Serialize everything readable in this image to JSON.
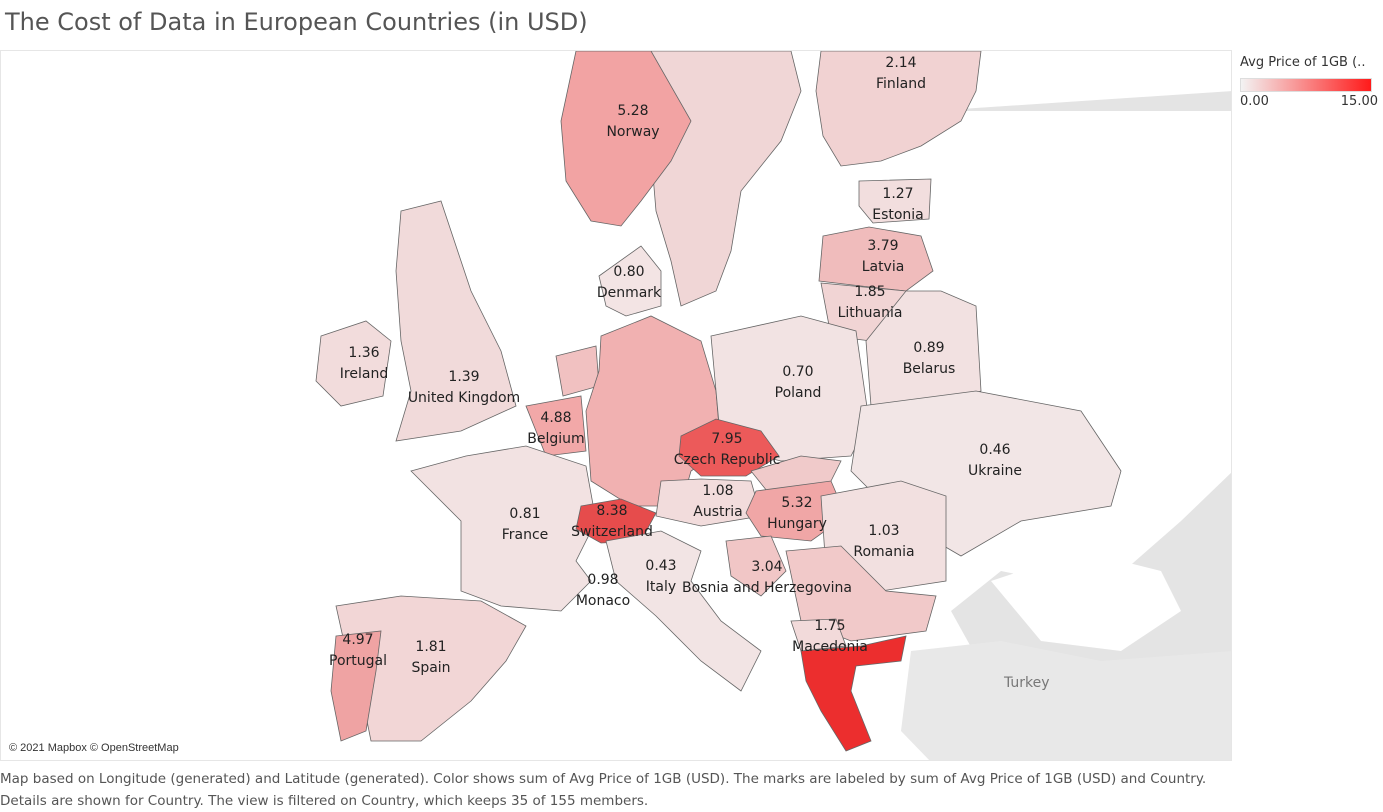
{
  "title": "The Cost of Data in European Countries (in USD)",
  "legend": {
    "title": "Avg Price of 1GB (..",
    "min_label": "0.00",
    "max_label": "15.00",
    "min_color": "#f3f3f3",
    "max_color": "#ff1a1a"
  },
  "attribution": "© 2021 Mapbox © OpenStreetMap",
  "background_label": "Turkey",
  "caption": "Map based on Longitude (generated) and Latitude (generated).  Color shows sum of Avg Price of 1GB (USD).  The marks are labeled by sum of Avg Price of 1GB (USD) and Country.  Details are shown for Country. The view is filtered on Country, which keeps 35 of 155 members.",
  "countries": [
    {
      "name": "Finland",
      "value": "2.14"
    },
    {
      "name": "Norway",
      "value": "5.28"
    },
    {
      "name": "Estonia",
      "value": "1.27"
    },
    {
      "name": "Latvia",
      "value": "3.79"
    },
    {
      "name": "Denmark",
      "value": "0.80"
    },
    {
      "name": "Lithuania",
      "value": "1.85"
    },
    {
      "name": "Ireland",
      "value": "1.36"
    },
    {
      "name": "United Kingdom",
      "value": "1.39"
    },
    {
      "name": "Belarus",
      "value": "0.89"
    },
    {
      "name": "Poland",
      "value": "0.70"
    },
    {
      "name": "Belgium",
      "value": "4.88"
    },
    {
      "name": "Czech Republic",
      "value": "7.95"
    },
    {
      "name": "Ukraine",
      "value": "0.46"
    },
    {
      "name": "Austria",
      "value": "1.08"
    },
    {
      "name": "France",
      "value": "0.81"
    },
    {
      "name": "Switzerland",
      "value": "8.38"
    },
    {
      "name": "Hungary",
      "value": "5.32"
    },
    {
      "name": "Romania",
      "value": "1.03"
    },
    {
      "name": "Italy",
      "value": "0.43"
    },
    {
      "name": "Monaco",
      "value": "0.98"
    },
    {
      "name": "Bosnia and Herzegovina",
      "value": "3.04"
    },
    {
      "name": "Macedonia",
      "value": "1.75"
    },
    {
      "name": "Portugal",
      "value": "4.97"
    },
    {
      "name": "Spain",
      "value": "1.81"
    }
  ]
}
